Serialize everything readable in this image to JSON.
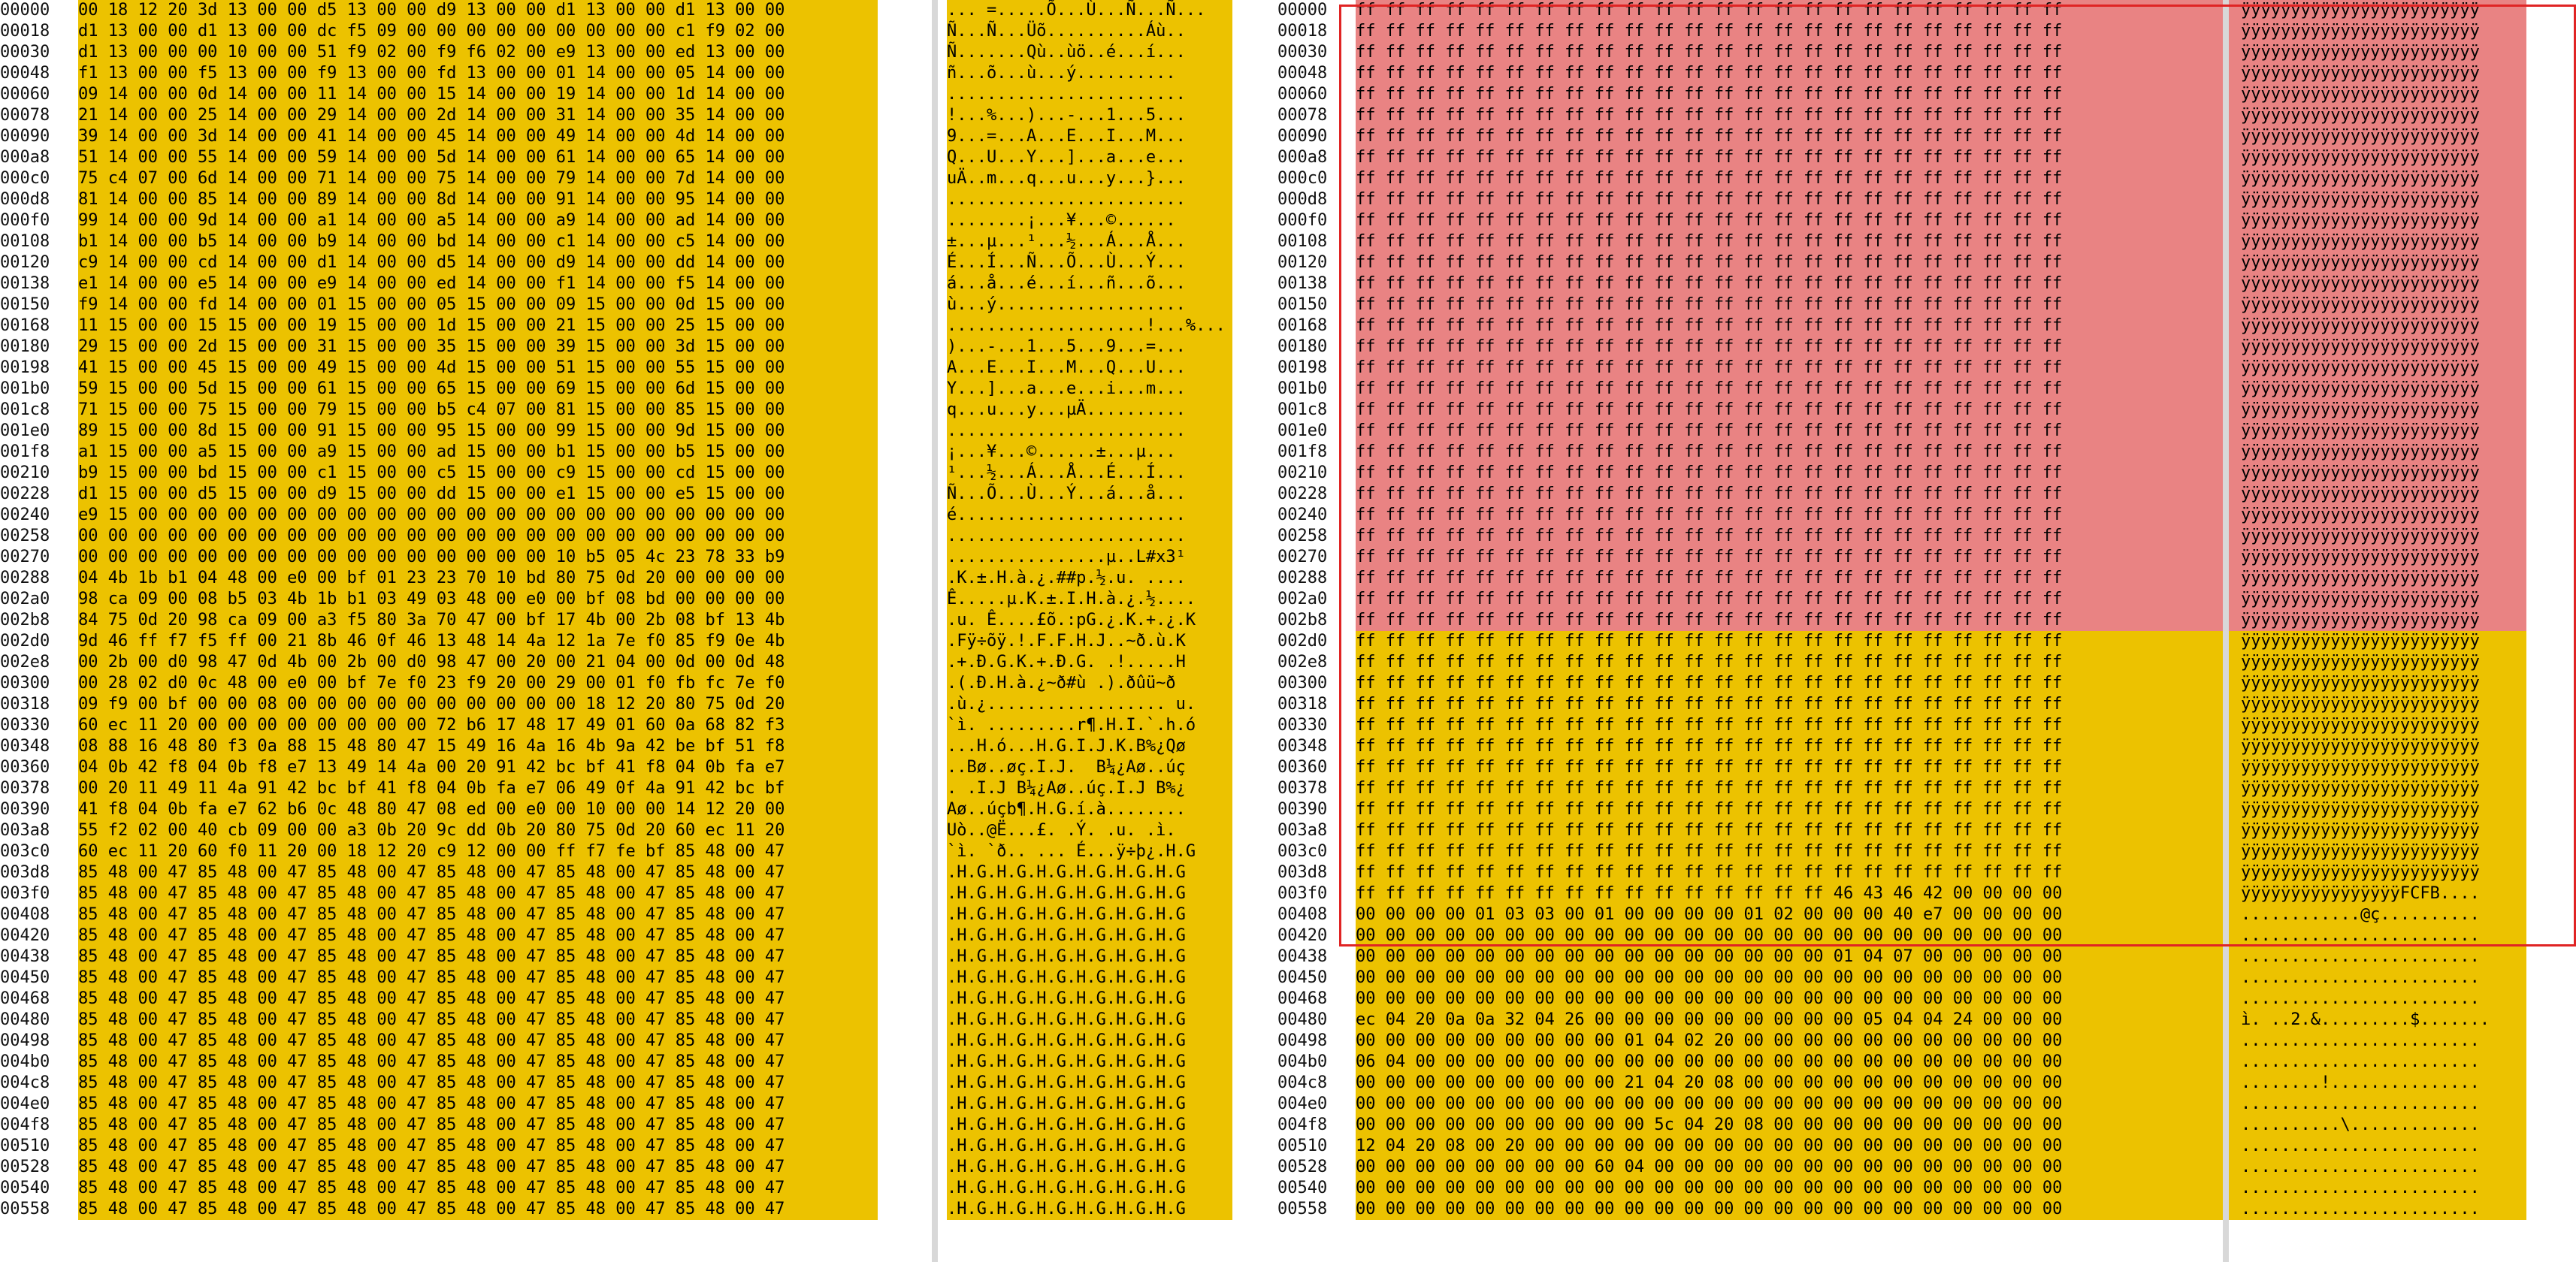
{
  "left_pane": {
    "offsets": [
      "00000",
      "00018",
      "00030",
      "00048",
      "00060",
      "00078",
      "00090",
      "000a8",
      "000c0",
      "000d8",
      "000f0",
      "00108",
      "00120",
      "00138",
      "00150",
      "00168",
      "00180",
      "00198",
      "001b0",
      "001c8",
      "001e0",
      "001f8",
      "00210",
      "00228",
      "00240",
      "00258",
      "00270",
      "00288",
      "002a0",
      "002b8",
      "002d0",
      "002e8",
      "00300",
      "00318",
      "00330",
      "00348",
      "00360",
      "00378",
      "00390",
      "003a8",
      "003c0",
      "003d8",
      "003f0",
      "00408",
      "00420",
      "00438",
      "00450",
      "00468",
      "00480",
      "00498",
      "004b0",
      "004c8",
      "004e0",
      "004f8",
      "00510",
      "00528",
      "00540",
      "00558"
    ],
    "hex_rows": [
      "00 18 12 20 3d 13 00 00 d5 13 00 00 d9 13 00 00 d1 13 00 00 d1 13 00 00",
      "d1 13 00 00 d1 13 00 00 dc f5 09 00 00 00 00 00 00 00 00 00 c1 f9 02 00",
      "d1 13 00 00 00 10 00 00 51 f9 02 00 f9 f6 02 00 e9 13 00 00 ed 13 00 00",
      "f1 13 00 00 f5 13 00 00 f9 13 00 00 fd 13 00 00 01 14 00 00 05 14 00 00",
      "09 14 00 00 0d 14 00 00 11 14 00 00 15 14 00 00 19 14 00 00 1d 14 00 00",
      "21 14 00 00 25 14 00 00 29 14 00 00 2d 14 00 00 31 14 00 00 35 14 00 00",
      "39 14 00 00 3d 14 00 00 41 14 00 00 45 14 00 00 49 14 00 00 4d 14 00 00",
      "51 14 00 00 55 14 00 00 59 14 00 00 5d 14 00 00 61 14 00 00 65 14 00 00",
      "75 c4 07 00 6d 14 00 00 71 14 00 00 75 14 00 00 79 14 00 00 7d 14 00 00",
      "81 14 00 00 85 14 00 00 89 14 00 00 8d 14 00 00 91 14 00 00 95 14 00 00",
      "99 14 00 00 9d 14 00 00 a1 14 00 00 a5 14 00 00 a9 14 00 00 ad 14 00 00",
      "b1 14 00 00 b5 14 00 00 b9 14 00 00 bd 14 00 00 c1 14 00 00 c5 14 00 00",
      "c9 14 00 00 cd 14 00 00 d1 14 00 00 d5 14 00 00 d9 14 00 00 dd 14 00 00",
      "e1 14 00 00 e5 14 00 00 e9 14 00 00 ed 14 00 00 f1 14 00 00 f5 14 00 00",
      "f9 14 00 00 fd 14 00 00 01 15 00 00 05 15 00 00 09 15 00 00 0d 15 00 00",
      "11 15 00 00 15 15 00 00 19 15 00 00 1d 15 00 00 21 15 00 00 25 15 00 00",
      "29 15 00 00 2d 15 00 00 31 15 00 00 35 15 00 00 39 15 00 00 3d 15 00 00",
      "41 15 00 00 45 15 00 00 49 15 00 00 4d 15 00 00 51 15 00 00 55 15 00 00",
      "59 15 00 00 5d 15 00 00 61 15 00 00 65 15 00 00 69 15 00 00 6d 15 00 00",
      "71 15 00 00 75 15 00 00 79 15 00 00 b5 c4 07 00 81 15 00 00 85 15 00 00",
      "89 15 00 00 8d 15 00 00 91 15 00 00 95 15 00 00 99 15 00 00 9d 15 00 00",
      "a1 15 00 00 a5 15 00 00 a9 15 00 00 ad 15 00 00 b1 15 00 00 b5 15 00 00",
      "b9 15 00 00 bd 15 00 00 c1 15 00 00 c5 15 00 00 c9 15 00 00 cd 15 00 00",
      "d1 15 00 00 d5 15 00 00 d9 15 00 00 dd 15 00 00 e1 15 00 00 e5 15 00 00",
      "e9 15 00 00 00 00 00 00 00 00 00 00 00 00 00 00 00 00 00 00 00 00 00 00",
      "00 00 00 00 00 00 00 00 00 00 00 00 00 00 00 00 00 00 00 00 00 00 00 00",
      "00 00 00 00 00 00 00 00 00 00 00 00 00 00 00 00 10 b5 05 4c 23 78 33 b9",
      "04 4b 1b b1 04 48 00 e0 00 bf 01 23 23 70 10 bd 80 75 0d 20 00 00 00 00",
      "98 ca 09 00 08 b5 03 4b 1b b1 03 49 03 48 00 e0 00 bf 08 bd 00 00 00 00",
      "84 75 0d 20 98 ca 09 00 a3 f5 80 3a 70 47 00 bf 17 4b 00 2b 08 bf 13 4b",
      "9d 46 ff f7 f5 ff 00 21 8b 46 0f 46 13 48 14 4a 12 1a 7e f0 85 f9 0e 4b",
      "00 2b 00 d0 98 47 0d 4b 00 2b 00 d0 98 47 00 20 00 21 04 00 0d 00 0d 48",
      "00 28 02 d0 0c 48 00 e0 00 bf 7e f0 23 f9 20 00 29 00 01 f0 fb fc 7e f0",
      "09 f9 00 bf 00 00 08 00 00 00 00 00 00 00 00 00 00 18 12 20 80 75 0d 20",
      "60 ec 11 20 00 00 00 00 00 00 00 00 72 b6 17 48 17 49 01 60 0a 68 82 f3",
      "08 88 16 48 80 f3 0a 88 15 48 80 47 15 49 16 4a 16 4b 9a 42 be bf 51 f8",
      "04 0b 42 f8 04 0b f8 e7 13 49 14 4a 00 20 91 42 bc bf 41 f8 04 0b fa e7",
      "00 20 11 49 11 4a 91 42 bc bf 41 f8 04 0b fa e7 06 49 0f 4a 91 42 bc bf",
      "41 f8 04 0b fa e7 62 b6 0c 48 80 47 08 ed 00 e0 00 10 00 00 14 12 20 00",
      "55 f2 02 00 40 cb 09 00 00 a3 0b 20 9c dd 0b 20 80 75 0d 20 60 ec 11 20",
      "60 ec 11 20 60 f0 11 20 00 18 12 20 c9 12 00 00 ff f7 fe bf 85 48 00 47",
      "85 48 00 47 85 48 00 47 85 48 00 47 85 48 00 47 85 48 00 47 85 48 00 47",
      "85 48 00 47 85 48 00 47 85 48 00 47 85 48 00 47 85 48 00 47 85 48 00 47",
      "85 48 00 47 85 48 00 47 85 48 00 47 85 48 00 47 85 48 00 47 85 48 00 47",
      "85 48 00 47 85 48 00 47 85 48 00 47 85 48 00 47 85 48 00 47 85 48 00 47",
      "85 48 00 47 85 48 00 47 85 48 00 47 85 48 00 47 85 48 00 47 85 48 00 47",
      "85 48 00 47 85 48 00 47 85 48 00 47 85 48 00 47 85 48 00 47 85 48 00 47",
      "85 48 00 47 85 48 00 47 85 48 00 47 85 48 00 47 85 48 00 47 85 48 00 47",
      "85 48 00 47 85 48 00 47 85 48 00 47 85 48 00 47 85 48 00 47 85 48 00 47",
      "85 48 00 47 85 48 00 47 85 48 00 47 85 48 00 47 85 48 00 47 85 48 00 47",
      "85 48 00 47 85 48 00 47 85 48 00 47 85 48 00 47 85 48 00 47 85 48 00 47",
      "85 48 00 47 85 48 00 47 85 48 00 47 85 48 00 47 85 48 00 47 85 48 00 47",
      "85 48 00 47 85 48 00 47 85 48 00 47 85 48 00 47 85 48 00 47 85 48 00 47",
      "85 48 00 47 85 48 00 47 85 48 00 47 85 48 00 47 85 48 00 47 85 48 00 47",
      "85 48 00 47 85 48 00 47 85 48 00 47 85 48 00 47 85 48 00 47 85 48 00 47",
      "85 48 00 47 85 48 00 47 85 48 00 47 85 48 00 47 85 48 00 47 85 48 00 47",
      "85 48 00 47 85 48 00 47 85 48 00 47 85 48 00 47 85 48 00 47 85 48 00 47",
      "85 48 00 47 85 48 00 47 85 48 00 47 85 48 00 47 85 48 00 47 85 48 00 47"
    ],
    "ascii_rows": [
      "... =.....Õ...Ù...Ñ...Ñ...",
      "Ñ...Ñ...Üõ..........Áù..",
      "Ñ.......Qù..ùö..é...í...",
      "ñ...õ...ù...ý..........",
      "........................",
      "!...%...)...-...1...5...",
      "9...=...A...E...I...M...",
      "Q...U...Y...]...a...e...",
      "uÄ..m...q...u...y...}...",
      "........................",
      "........¡...¥...©...­...",
      "±...µ...¹...½...Á...Å...",
      "É...Í...Ñ...Õ...Ù...Ý...",
      "á...å...é...í...ñ...õ...",
      "ù...ý...................",
      "....................!...%...",
      ")...-...1...5...9...=...",
      "A...E...I...M...Q...U...",
      "Y...]...a...e...i...m...",
      "q...u...y...µÄ..........",
      "........................",
      "¡...¥...©...­...±...µ...",
      "¹...½...Á...Å...É...Í...",
      "Ñ...Õ...Ù...Ý...á...å...",
      "é.......................",
      "........................",
      "................µ..L#x3¹",
      ".K.±.H.à.¿.##p.½.u. ....",
      "Ê.....µ.K.±.I.H.à.¿.½....",
      ".u. Ê....£õ.:pG.¿.K.+.¿.K",
      ".Fÿ÷õÿ.!.F.F.H.J..~ð.ù.K",
      ".+.Ð.G.K.+.Ð.G. .!.....H",
      ".(.Ð.H.à.¿~ð#ù .).ðûü~ð",
      ".ù.¿.................. u.",
      "`ì. .........r¶.H.I.`.h.ó",
      "...H.ó...H.G.I.J.K.B%¿Qø",
      "..Bø..øç.I.J.  B¼¿Aø..úç",
      ". .I.J B¼¿Aø..úç.I.J B%¿",
      "Aø..úçb¶.H.G.í.à........",
      "Uò..@Ë...£. .Ý. .u. .ì.",
      "`ì. `ð.. ... É...ÿ÷þ¿.H.G",
      ".H.G.H.G.H.G.H.G.H.G.H.G",
      ".H.G.H.G.H.G.H.G.H.G.H.G",
      ".H.G.H.G.H.G.H.G.H.G.H.G",
      ".H.G.H.G.H.G.H.G.H.G.H.G",
      ".H.G.H.G.H.G.H.G.H.G.H.G",
      ".H.G.H.G.H.G.H.G.H.G.H.G",
      ".H.G.H.G.H.G.H.G.H.G.H.G",
      ".H.G.H.G.H.G.H.G.H.G.H.G",
      ".H.G.H.G.H.G.H.G.H.G.H.G",
      ".H.G.H.G.H.G.H.G.H.G.H.G",
      ".H.G.H.G.H.G.H.G.H.G.H.G",
      ".H.G.H.G.H.G.H.G.H.G.H.G",
      ".H.G.H.G.H.G.H.G.H.G.H.G",
      ".H.G.H.G.H.G.H.G.H.G.H.G",
      ".H.G.H.G.H.G.H.G.H.G.H.G",
      ".H.G.H.G.H.G.H.G.H.G.H.G",
      ".H.G.H.G.H.G.H.G.H.G.H.G"
    ]
  },
  "right_pane": {
    "offsets": [
      "00000",
      "00018",
      "00030",
      "00048",
      "00060",
      "00078",
      "00090",
      "000a8",
      "000c0",
      "000d8",
      "000f0",
      "00108",
      "00120",
      "00138",
      "00150",
      "00168",
      "00180",
      "00198",
      "001b0",
      "001c8",
      "001e0",
      "001f8",
      "00210",
      "00228",
      "00240",
      "00258",
      "00270",
      "00288",
      "002a0",
      "002b8",
      "002d0",
      "002e8",
      "00300",
      "00318",
      "00330",
      "00348",
      "00360",
      "00378",
      "00390",
      "003a8",
      "003c0",
      "003d8",
      "003f0",
      "00408",
      "00420",
      "00438",
      "00450",
      "00468",
      "00480",
      "00498",
      "004b0",
      "004c8",
      "004e0",
      "004f8",
      "00510",
      "00528",
      "00540",
      "00558"
    ],
    "hex_rows": [
      "ff ff ff ff ff ff ff ff ff ff ff ff ff ff ff ff ff ff ff ff ff ff ff ff",
      "ff ff ff ff ff ff ff ff ff ff ff ff ff ff ff ff ff ff ff ff ff ff ff ff",
      "ff ff ff ff ff ff ff ff ff ff ff ff ff ff ff ff ff ff ff ff ff ff ff ff",
      "ff ff ff ff ff ff ff ff ff ff ff ff ff ff ff ff ff ff ff ff ff ff ff ff",
      "ff ff ff ff ff ff ff ff ff ff ff ff ff ff ff ff ff ff ff ff ff ff ff ff",
      "ff ff ff ff ff ff ff ff ff ff ff ff ff ff ff ff ff ff ff ff ff ff ff ff",
      "ff ff ff ff ff ff ff ff ff ff ff ff ff ff ff ff ff ff ff ff ff ff ff ff",
      "ff ff ff ff ff ff ff ff ff ff ff ff ff ff ff ff ff ff ff ff ff ff ff ff",
      "ff ff ff ff ff ff ff ff ff ff ff ff ff ff ff ff ff ff ff ff ff ff ff ff",
      "ff ff ff ff ff ff ff ff ff ff ff ff ff ff ff ff ff ff ff ff ff ff ff ff",
      "ff ff ff ff ff ff ff ff ff ff ff ff ff ff ff ff ff ff ff ff ff ff ff ff",
      "ff ff ff ff ff ff ff ff ff ff ff ff ff ff ff ff ff ff ff ff ff ff ff ff",
      "ff ff ff ff ff ff ff ff ff ff ff ff ff ff ff ff ff ff ff ff ff ff ff ff",
      "ff ff ff ff ff ff ff ff ff ff ff ff ff ff ff ff ff ff ff ff ff ff ff ff",
      "ff ff ff ff ff ff ff ff ff ff ff ff ff ff ff ff ff ff ff ff ff ff ff ff",
      "ff ff ff ff ff ff ff ff ff ff ff ff ff ff ff ff ff ff ff ff ff ff ff ff",
      "ff ff ff ff ff ff ff ff ff ff ff ff ff ff ff ff ff ff ff ff ff ff ff ff",
      "ff ff ff ff ff ff ff ff ff ff ff ff ff ff ff ff ff ff ff ff ff ff ff ff",
      "ff ff ff ff ff ff ff ff ff ff ff ff ff ff ff ff ff ff ff ff ff ff ff ff",
      "ff ff ff ff ff ff ff ff ff ff ff ff ff ff ff ff ff ff ff ff ff ff ff ff",
      "ff ff ff ff ff ff ff ff ff ff ff ff ff ff ff ff ff ff ff ff ff ff ff ff",
      "ff ff ff ff ff ff ff ff ff ff ff ff ff ff ff ff ff ff ff ff ff ff ff ff",
      "ff ff ff ff ff ff ff ff ff ff ff ff ff ff ff ff ff ff ff ff ff ff ff ff",
      "ff ff ff ff ff ff ff ff ff ff ff ff ff ff ff ff ff ff ff ff ff ff ff ff",
      "ff ff ff ff ff ff ff ff ff ff ff ff ff ff ff ff ff ff ff ff ff ff ff ff",
      "ff ff ff ff ff ff ff ff ff ff ff ff ff ff ff ff ff ff ff ff ff ff ff ff",
      "ff ff ff ff ff ff ff ff ff ff ff ff ff ff ff ff ff ff ff ff ff ff ff ff",
      "ff ff ff ff ff ff ff ff ff ff ff ff ff ff ff ff ff ff ff ff ff ff ff ff",
      "ff ff ff ff ff ff ff ff ff ff ff ff ff ff ff ff ff ff ff ff ff ff ff ff",
      "ff ff ff ff ff ff ff ff ff ff ff ff ff ff ff ff ff ff ff ff ff ff ff ff",
      "ff ff ff ff ff ff ff ff ff ff ff ff ff ff ff ff ff ff ff ff ff ff ff ff",
      "ff ff ff ff ff ff ff ff ff ff ff ff ff ff ff ff ff ff ff ff ff ff ff ff",
      "ff ff ff ff ff ff ff ff ff ff ff ff ff ff ff ff ff ff ff ff ff ff ff ff",
      "ff ff ff ff ff ff ff ff ff ff ff ff ff ff ff ff ff ff ff ff ff ff ff ff",
      "ff ff ff ff ff ff ff ff ff ff ff ff ff ff ff ff ff ff ff ff ff ff ff ff",
      "ff ff ff ff ff ff ff ff ff ff ff ff ff ff ff ff ff ff ff ff ff ff ff ff",
      "ff ff ff ff ff ff ff ff ff ff ff ff ff ff ff ff ff ff ff ff ff ff ff ff",
      "ff ff ff ff ff ff ff ff ff ff ff ff ff ff ff ff ff ff ff ff ff ff ff ff",
      "ff ff ff ff ff ff ff ff ff ff ff ff ff ff ff ff ff ff ff ff ff ff ff ff",
      "ff ff ff ff ff ff ff ff ff ff ff ff ff ff ff ff ff ff ff ff ff ff ff ff",
      "ff ff ff ff ff ff ff ff ff ff ff ff ff ff ff ff ff ff ff ff ff ff ff ff",
      "ff ff ff ff ff ff ff ff ff ff ff ff ff ff ff ff ff ff ff ff ff ff ff ff",
      "ff ff ff ff ff ff ff ff ff ff ff ff ff ff ff ff 46 43 46 42 00 00 00 00",
      "00 00 00 00 01 03 03 00 01 00 00 00 00 01 02 00 00 00 40 e7 00 00 00 00",
      "00 00 00 00 00 00 00 00 00 00 00 00 00 00 00 00 00 00 00 00 00 00 00 00",
      "00 00 00 00 00 00 00 00 00 00 00 00 00 00 00 00 01 04 07 00 00 00 00 00",
      "00 00 00 00 00 00 00 00 00 00 00 00 00 00 00 00 00 00 00 00 00 00 00 00",
      "00 00 00 00 00 00 00 00 00 00 00 00 00 00 00 00 00 00 00 00 00 00 00 00",
      "ec 04 20 0a 0a 32 04 26 00 00 00 00 00 00 00 00 00 05 04 04 24 00 00 00",
      "00 00 00 00 00 00 00 00 00 01 04 02 20 00 00 00 00 00 00 00 00 00 00 00",
      "06 04 00 00 00 00 00 00 00 00 00 00 00 00 00 00 00 00 00 00 00 00 00 00",
      "00 00 00 00 00 00 00 00 00 21 04 20 08 00 00 00 00 00 00 00 00 00 00 00",
      "00 00 00 00 00 00 00 00 00 00 00 00 00 00 00 00 00 00 00 00 00 00 00 00",
      "00 00 00 00 00 00 00 00 00 00 5c 04 20 08 00 00 00 00 00 00 00 00 00 00",
      "12 04 20 08 00 20 00 00 00 00 00 00 00 00 00 00 00 00 00 00 00 00 00 00",
      "00 00 00 00 00 00 00 00 60 04 00 00 00 00 00 00 00 00 00 00 00 00 00 00",
      "00 00 00 00 00 00 00 00 00 00 00 00 00 00 00 00 00 00 00 00 00 00 00 00",
      "00 00 00 00 00 00 00 00 00 00 00 00 00 00 00 00 00 00 00 00 00 00 00 00"
    ],
    "ascii_rows": [
      "ÿÿÿÿÿÿÿÿÿÿÿÿÿÿÿÿÿÿÿÿÿÿÿÿ",
      "ÿÿÿÿÿÿÿÿÿÿÿÿÿÿÿÿÿÿÿÿÿÿÿÿ",
      "ÿÿÿÿÿÿÿÿÿÿÿÿÿÿÿÿÿÿÿÿÿÿÿÿ",
      "ÿÿÿÿÿÿÿÿÿÿÿÿÿÿÿÿÿÿÿÿÿÿÿÿ",
      "ÿÿÿÿÿÿÿÿÿÿÿÿÿÿÿÿÿÿÿÿÿÿÿÿ",
      "ÿÿÿÿÿÿÿÿÿÿÿÿÿÿÿÿÿÿÿÿÿÿÿÿ",
      "ÿÿÿÿÿÿÿÿÿÿÿÿÿÿÿÿÿÿÿÿÿÿÿÿ",
      "ÿÿÿÿÿÿÿÿÿÿÿÿÿÿÿÿÿÿÿÿÿÿÿÿ",
      "ÿÿÿÿÿÿÿÿÿÿÿÿÿÿÿÿÿÿÿÿÿÿÿÿ",
      "ÿÿÿÿÿÿÿÿÿÿÿÿÿÿÿÿÿÿÿÿÿÿÿÿ",
      "ÿÿÿÿÿÿÿÿÿÿÿÿÿÿÿÿÿÿÿÿÿÿÿÿ",
      "ÿÿÿÿÿÿÿÿÿÿÿÿÿÿÿÿÿÿÿÿÿÿÿÿ",
      "ÿÿÿÿÿÿÿÿÿÿÿÿÿÿÿÿÿÿÿÿÿÿÿÿ",
      "ÿÿÿÿÿÿÿÿÿÿÿÿÿÿÿÿÿÿÿÿÿÿÿÿ",
      "ÿÿÿÿÿÿÿÿÿÿÿÿÿÿÿÿÿÿÿÿÿÿÿÿ",
      "ÿÿÿÿÿÿÿÿÿÿÿÿÿÿÿÿÿÿÿÿÿÿÿÿ",
      "ÿÿÿÿÿÿÿÿÿÿÿÿÿÿÿÿÿÿÿÿÿÿÿÿ",
      "ÿÿÿÿÿÿÿÿÿÿÿÿÿÿÿÿÿÿÿÿÿÿÿÿ",
      "ÿÿÿÿÿÿÿÿÿÿÿÿÿÿÿÿÿÿÿÿÿÿÿÿ",
      "ÿÿÿÿÿÿÿÿÿÿÿÿÿÿÿÿÿÿÿÿÿÿÿÿ",
      "ÿÿÿÿÿÿÿÿÿÿÿÿÿÿÿÿÿÿÿÿÿÿÿÿ",
      "ÿÿÿÿÿÿÿÿÿÿÿÿÿÿÿÿÿÿÿÿÿÿÿÿ",
      "ÿÿÿÿÿÿÿÿÿÿÿÿÿÿÿÿÿÿÿÿÿÿÿÿ",
      "ÿÿÿÿÿÿÿÿÿÿÿÿÿÿÿÿÿÿÿÿÿÿÿÿ",
      "ÿÿÿÿÿÿÿÿÿÿÿÿÿÿÿÿÿÿÿÿÿÿÿÿ",
      "ÿÿÿÿÿÿÿÿÿÿÿÿÿÿÿÿÿÿÿÿÿÿÿÿ",
      "ÿÿÿÿÿÿÿÿÿÿÿÿÿÿÿÿÿÿÿÿÿÿÿÿ",
      "ÿÿÿÿÿÿÿÿÿÿÿÿÿÿÿÿÿÿÿÿÿÿÿÿ",
      "ÿÿÿÿÿÿÿÿÿÿÿÿÿÿÿÿÿÿÿÿÿÿÿÿ",
      "ÿÿÿÿÿÿÿÿÿÿÿÿÿÿÿÿÿÿÿÿÿÿÿÿ",
      "ÿÿÿÿÿÿÿÿÿÿÿÿÿÿÿÿÿÿÿÿÿÿÿÿ",
      "ÿÿÿÿÿÿÿÿÿÿÿÿÿÿÿÿÿÿÿÿÿÿÿÿ",
      "ÿÿÿÿÿÿÿÿÿÿÿÿÿÿÿÿÿÿÿÿÿÿÿÿ",
      "ÿÿÿÿÿÿÿÿÿÿÿÿÿÿÿÿÿÿÿÿÿÿÿÿ",
      "ÿÿÿÿÿÿÿÿÿÿÿÿÿÿÿÿÿÿÿÿÿÿÿÿ",
      "ÿÿÿÿÿÿÿÿÿÿÿÿÿÿÿÿÿÿÿÿÿÿÿÿ",
      "ÿÿÿÿÿÿÿÿÿÿÿÿÿÿÿÿÿÿÿÿÿÿÿÿ",
      "ÿÿÿÿÿÿÿÿÿÿÿÿÿÿÿÿÿÿÿÿÿÿÿÿ",
      "ÿÿÿÿÿÿÿÿÿÿÿÿÿÿÿÿÿÿÿÿÿÿÿÿ",
      "ÿÿÿÿÿÿÿÿÿÿÿÿÿÿÿÿÿÿÿÿÿÿÿÿ",
      "ÿÿÿÿÿÿÿÿÿÿÿÿÿÿÿÿÿÿÿÿÿÿÿÿ",
      "ÿÿÿÿÿÿÿÿÿÿÿÿÿÿÿÿÿÿÿÿÿÿÿÿ",
      "ÿÿÿÿÿÿÿÿÿÿÿÿÿÿÿÿFCFB....",
      "............@ç..........",
      "........................",
      "........................",
      "........................",
      "........................",
      "ì. ..2.&.........$.......",
      "........................",
      "........................",
      "........!...............",
      "........................",
      "..........\\.............",
      "........................",
      "........................",
      "........................",
      "........................"
    ]
  },
  "colors": {
    "yellow": "#ecc200",
    "red": "#e98383",
    "selection_border": "#e02424",
    "divider": "#d8d8d8"
  }
}
